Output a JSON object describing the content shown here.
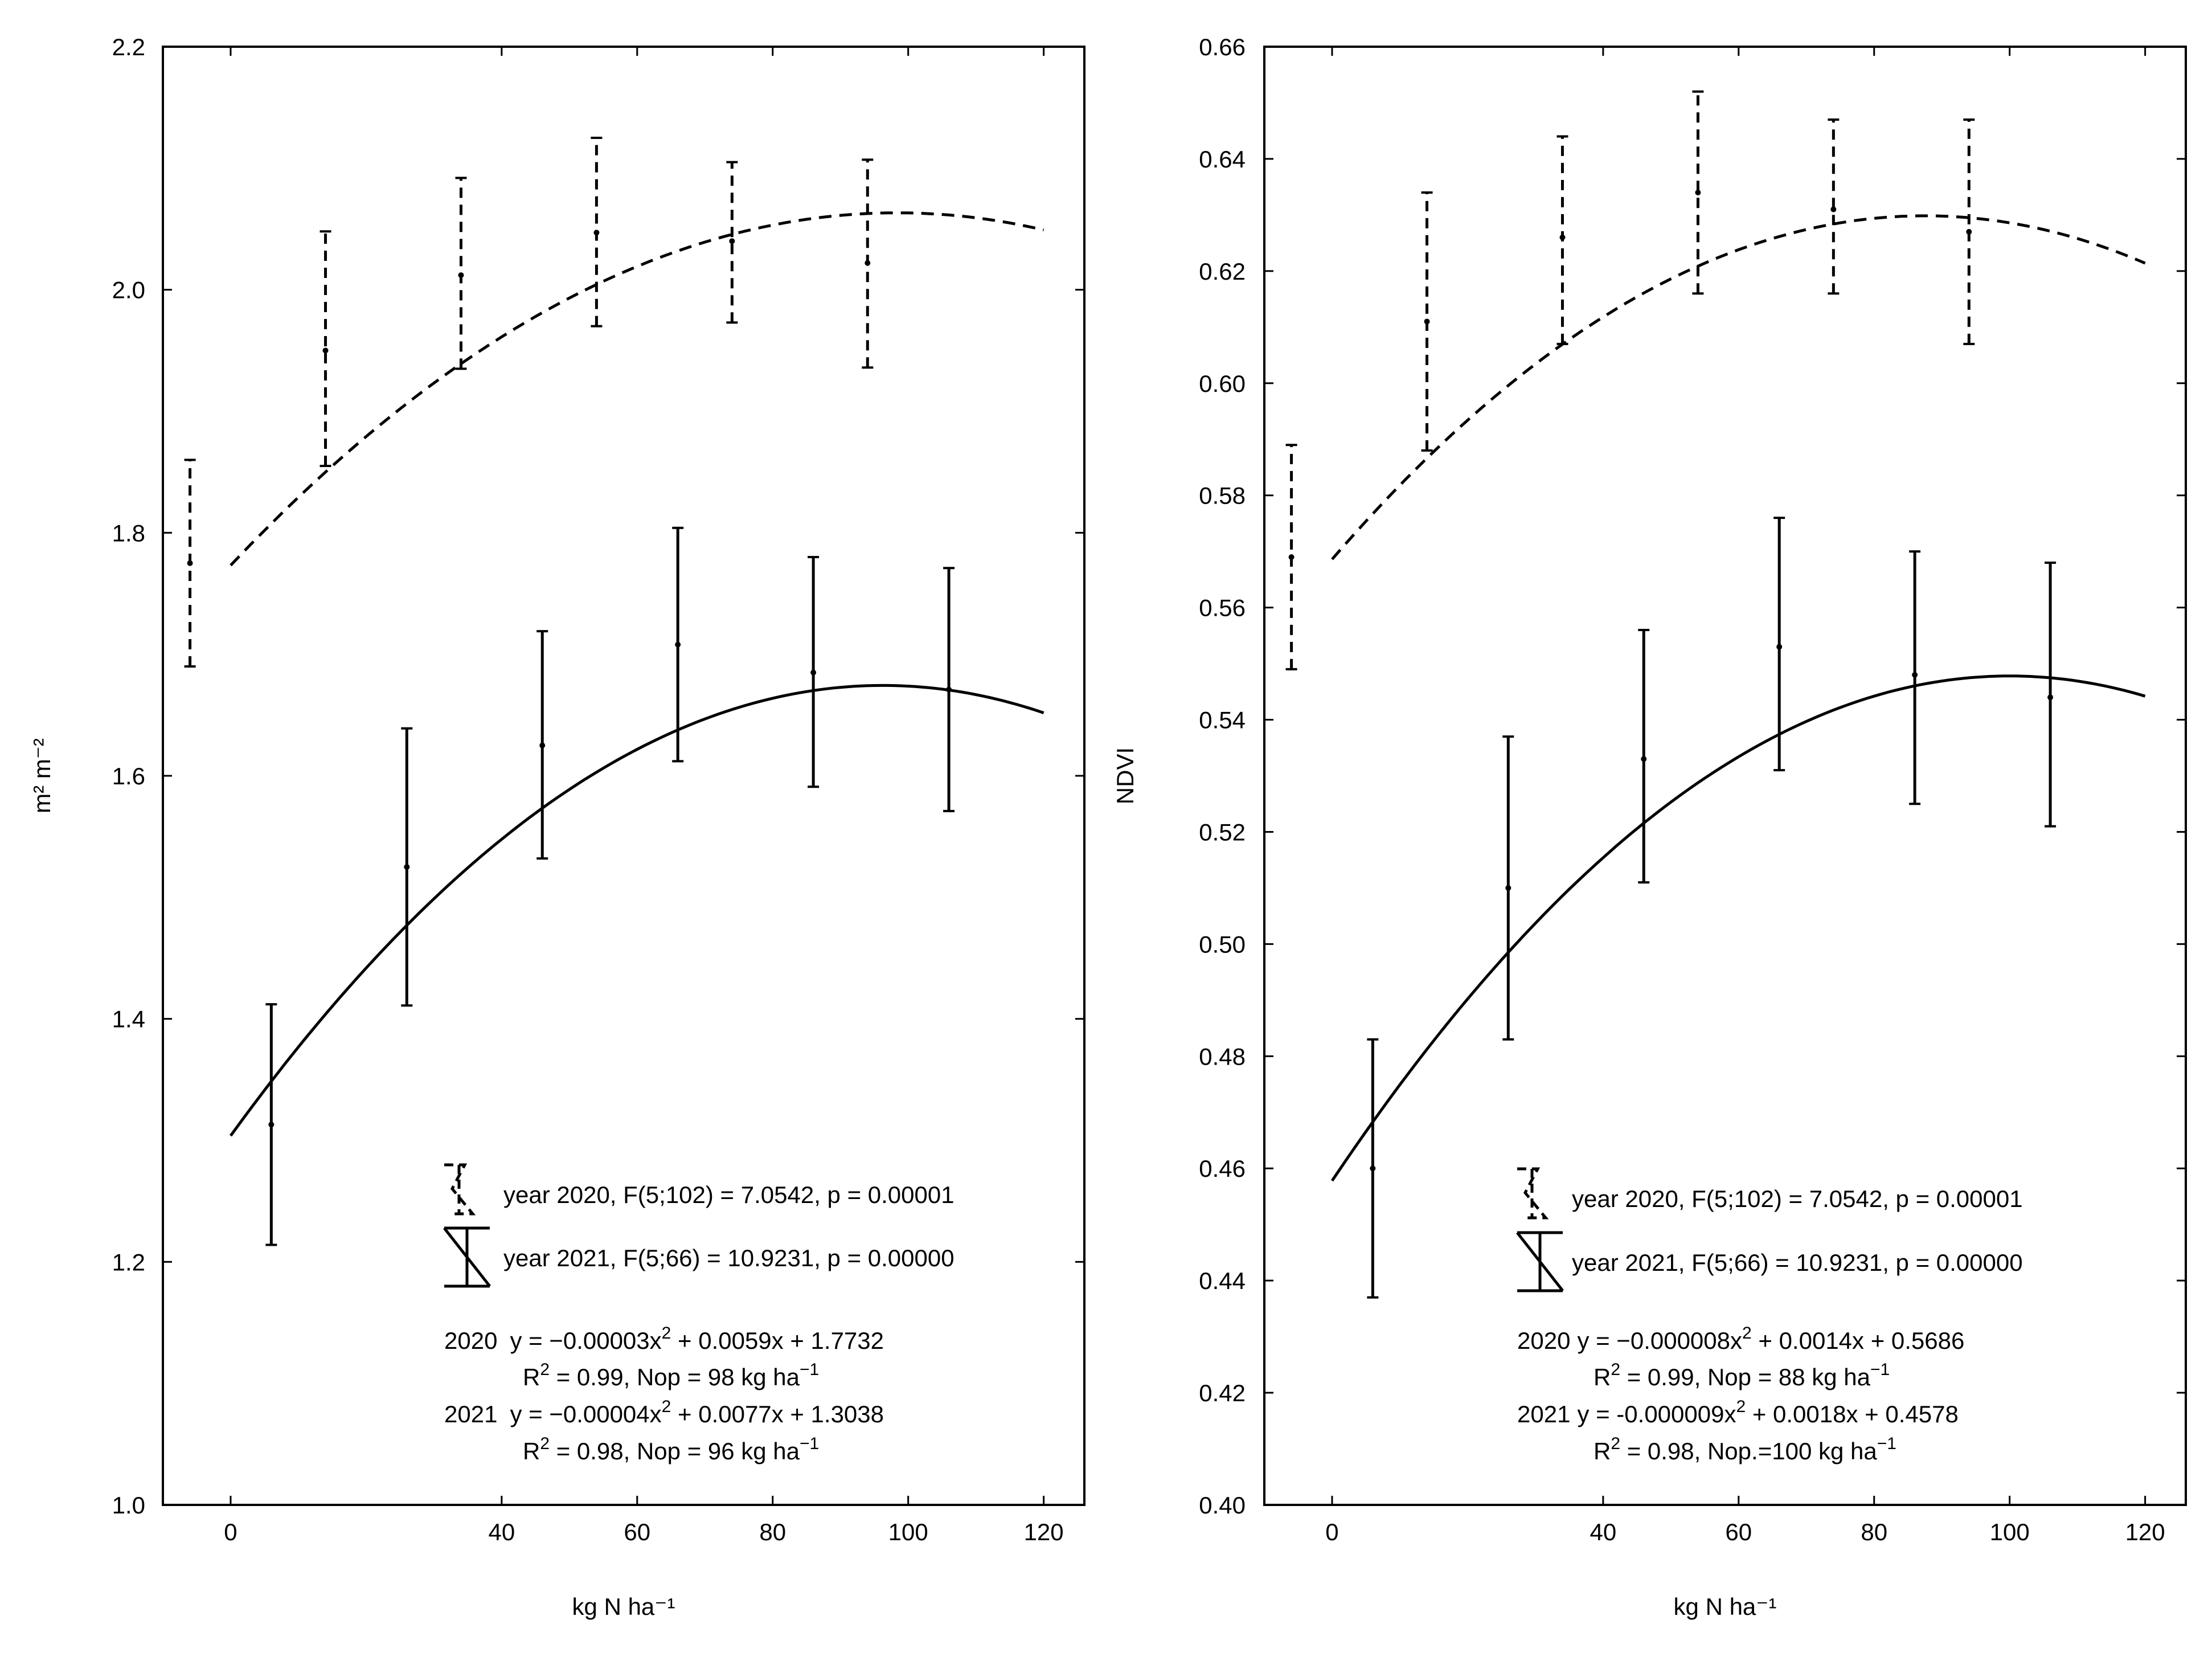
{
  "chart_data": [
    {
      "type": "line",
      "title": "",
      "xlabel": "kg N ha⁻¹",
      "ylabel": "m² m⁻²",
      "xlim": [
        -10,
        126
      ],
      "ylim": [
        1.0,
        2.2
      ],
      "xticks": [
        0,
        40,
        60,
        80,
        100,
        120
      ],
      "yticks": [
        1.0,
        1.2,
        1.4,
        1.6,
        1.8,
        2.0,
        2.2
      ],
      "xtick_labels": [
        "0",
        "40",
        "60",
        "80",
        "100",
        "120"
      ],
      "ytick_labels": [
        "1.0",
        "1.2",
        "1.4",
        "1.6",
        "1.8",
        "2.0",
        "2.2"
      ],
      "series": [
        {
          "name": "year 2020",
          "style": "dashed",
          "points": [
            {
              "x": -6,
              "mean": 1.775,
              "low": 1.69,
              "high": 1.86
            },
            {
              "x": 14,
              "mean": 1.95,
              "low": 1.855,
              "high": 2.048
            },
            {
              "x": 34,
              "mean": 2.012,
              "low": 1.935,
              "high": 2.092
            },
            {
              "x": 54,
              "mean": 2.047,
              "low": 1.97,
              "high": 2.125
            },
            {
              "x": 74,
              "mean": 2.04,
              "low": 1.973,
              "high": 2.105
            },
            {
              "x": 94,
              "mean": 2.022,
              "low": 1.936,
              "high": 2.107
            }
          ],
          "fit": {
            "a": -3e-05,
            "b": 0.0059,
            "c": 1.7732,
            "x_from": 0,
            "x_to": 120
          }
        },
        {
          "name": "year 2021",
          "style": "solid",
          "points": [
            {
              "x": 6,
              "mean": 1.313,
              "low": 1.214,
              "high": 1.412
            },
            {
              "x": 26,
              "mean": 1.525,
              "low": 1.411,
              "high": 1.639
            },
            {
              "x": 46,
              "mean": 1.625,
              "low": 1.532,
              "high": 1.719
            },
            {
              "x": 66,
              "mean": 1.708,
              "low": 1.612,
              "high": 1.804
            },
            {
              "x": 86,
              "mean": 1.685,
              "low": 1.591,
              "high": 1.78
            },
            {
              "x": 106,
              "mean": 1.671,
              "low": 1.571,
              "high": 1.771
            }
          ],
          "fit": {
            "a": -4e-05,
            "b": 0.0077,
            "c": 1.3038,
            "x_from": 0,
            "x_to": 120
          }
        }
      ],
      "legend": [
        {
          "label": "year 2020, F(5;102) = 7.0542, p = 0.00001",
          "style": "dashed"
        },
        {
          "label": "year 2021, F(5;66) = 10.9231, p = 0.00000",
          "style": "solid"
        }
      ],
      "equations": {
        "row1": {
          "year": "2020",
          "lhs": "y = −0.00003x",
          "mid": " + 0.0059x + 1.7732"
        },
        "row2": {
          "pre": "R",
          "post": " = 0.99,  Nop = 98 kg ha",
          "unit_exp": "−1"
        },
        "row3": {
          "year": "2021",
          "lhs": "y = −0.00004x",
          "mid": " + 0.0077x + 1.3038"
        },
        "row4": {
          "pre": "R",
          "post": " = 0.98, Nop = 96 kg ha",
          "unit_exp": "−1"
        }
      }
    },
    {
      "type": "line",
      "title": "",
      "xlabel": "kg N ha⁻¹",
      "ylabel": "NDVI",
      "xlim": [
        -10,
        126
      ],
      "ylim": [
        0.4,
        0.66
      ],
      "xticks": [
        0,
        40,
        60,
        80,
        100,
        120
      ],
      "yticks": [
        0.4,
        0.42,
        0.44,
        0.46,
        0.48,
        0.5,
        0.52,
        0.54,
        0.56,
        0.58,
        0.6,
        0.62,
        0.64,
        0.66
      ],
      "xtick_labels": [
        "0",
        "40",
        "60",
        "80",
        "100",
        "120"
      ],
      "ytick_labels": [
        "0.40",
        "0.42",
        "0.44",
        "0.46",
        "0.48",
        "0.50",
        "0.52",
        "0.54",
        "0.56",
        "0.58",
        "0.60",
        "0.62",
        "0.64",
        "0.66"
      ],
      "series": [
        {
          "name": "year 2020",
          "style": "dashed",
          "points": [
            {
              "x": -6,
              "mean": 0.569,
              "low": 0.549,
              "high": 0.589
            },
            {
              "x": 14,
              "mean": 0.611,
              "low": 0.588,
              "high": 0.634
            },
            {
              "x": 34,
              "mean": 0.626,
              "low": 0.607,
              "high": 0.644
            },
            {
              "x": 54,
              "mean": 0.634,
              "low": 0.616,
              "high": 0.652
            },
            {
              "x": 74,
              "mean": 0.631,
              "low": 0.616,
              "high": 0.647
            },
            {
              "x": 94,
              "mean": 0.627,
              "low": 0.607,
              "high": 0.647
            }
          ],
          "fit": {
            "a": -8e-06,
            "b": 0.0014,
            "c": 0.5686,
            "x_from": 0,
            "x_to": 120
          }
        },
        {
          "name": "year 2021",
          "style": "solid",
          "points": [
            {
              "x": 6,
              "mean": 0.46,
              "low": 0.437,
              "high": 0.483
            },
            {
              "x": 26,
              "mean": 0.51,
              "low": 0.483,
              "high": 0.537
            },
            {
              "x": 46,
              "mean": 0.533,
              "low": 0.511,
              "high": 0.556
            },
            {
              "x": 66,
              "mean": 0.553,
              "low": 0.531,
              "high": 0.576
            },
            {
              "x": 86,
              "mean": 0.548,
              "low": 0.525,
              "high": 0.57
            },
            {
              "x": 106,
              "mean": 0.544,
              "low": 0.521,
              "high": 0.568
            }
          ],
          "fit": {
            "a": -9e-06,
            "b": 0.0018,
            "c": 0.4578,
            "x_from": 0,
            "x_to": 120
          }
        }
      ],
      "legend": [
        {
          "label": "year 2020, F(5;102) = 7.0542, p = 0.00001",
          "style": "dashed"
        },
        {
          "label": "year 2021, F(5;66) = 10.9231, p = 0.00000",
          "style": "solid"
        }
      ],
      "equations": {
        "row1": {
          "year": "2020",
          "lhs": "y = −0.000008x",
          "mid": " + 0.0014x + 0.5686"
        },
        "row2": {
          "pre": "R",
          "post": " = 0.99, Nop = 88 kg ha",
          "unit_exp": "−1"
        },
        "row3": {
          "year": "2021",
          "lhs": "y = -0.000009x",
          "mid": " + 0.0018x + 0.4578"
        },
        "row4": {
          "pre": "R",
          "post": " = 0.98, Nop.=100 kg ha",
          "unit_exp": "−1"
        }
      }
    }
  ],
  "superscripts": {
    "sq": "2",
    "neg_one": "−1",
    "neg_two": "−2"
  }
}
